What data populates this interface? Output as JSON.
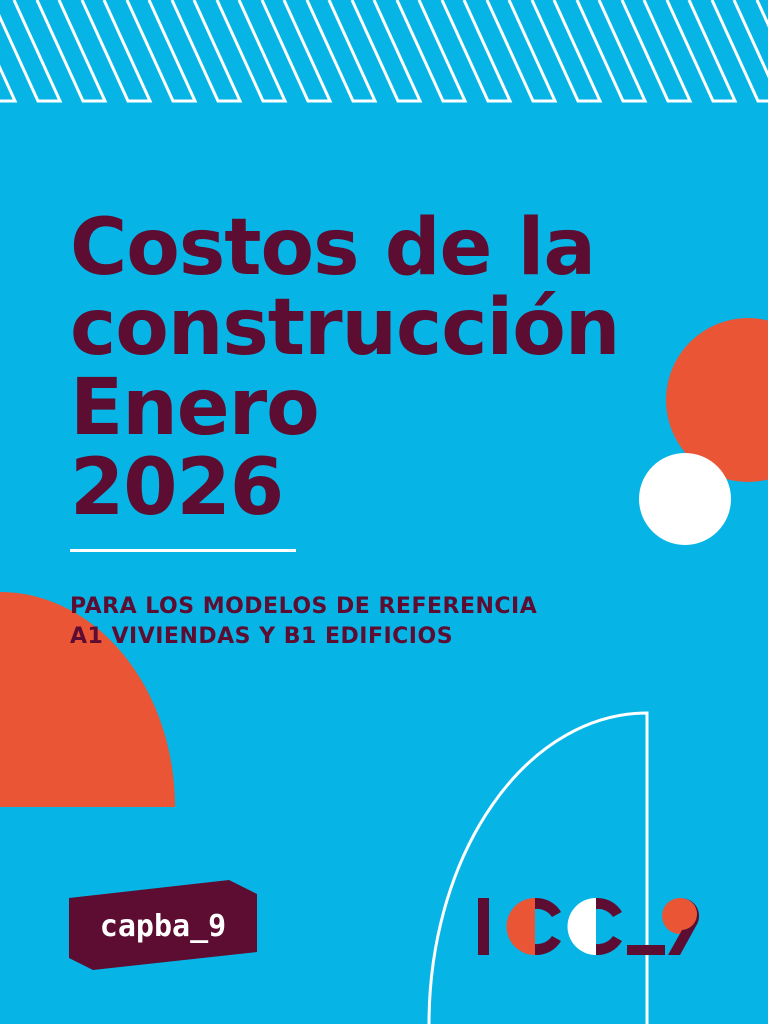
{
  "cover": {
    "title_lines": [
      "Costos de la",
      "construcción",
      "Enero",
      "2026"
    ],
    "subtitle_lines": [
      "PARA LOS MODELOS DE REFERENCIA",
      "A1 VIVIENDAS Y B1 EDIFICIOS"
    ]
  },
  "logos": {
    "capba": "capba_9",
    "icc": "ICC_9"
  },
  "colors": {
    "background": "#06b5e5",
    "maroon": "#5c0d31",
    "orange": "#e95535",
    "white": "#ffffff"
  }
}
